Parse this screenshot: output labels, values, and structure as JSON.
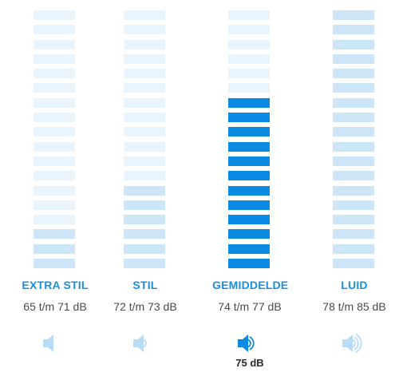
{
  "categories": [
    {
      "id": "extra-stil",
      "label": "EXTRA STIL",
      "range": "65 t/m 71 dB",
      "icon": "speaker-muted-icon",
      "segments_total": 18,
      "segments_lit": 3,
      "active": false,
      "reading": ""
    },
    {
      "id": "stil",
      "label": "STIL",
      "range": "72 t/m 73 dB",
      "icon": "speaker-low-icon",
      "segments_total": 18,
      "segments_lit": 6,
      "active": false,
      "reading": ""
    },
    {
      "id": "gemiddelde",
      "label": "GEMIDDELDE",
      "range": "74 t/m 77 dB",
      "icon": "speaker-medium-icon",
      "segments_total": 18,
      "segments_lit": 12,
      "active": true,
      "reading": "75 dB"
    },
    {
      "id": "luid",
      "label": "LUID",
      "range": "78 t/m 85 dB",
      "icon": "speaker-high-icon",
      "segments_total": 18,
      "segments_lit": 18,
      "active": false,
      "reading": ""
    }
  ],
  "colors": {
    "segment_faint": "#eaf4fc",
    "segment_light": "#cce6f7",
    "segment_active": "#0a8ae0",
    "icon_faint": "#b7dcf5",
    "icon_active": "#0a8ae0",
    "label": "#1a8fdc"
  }
}
